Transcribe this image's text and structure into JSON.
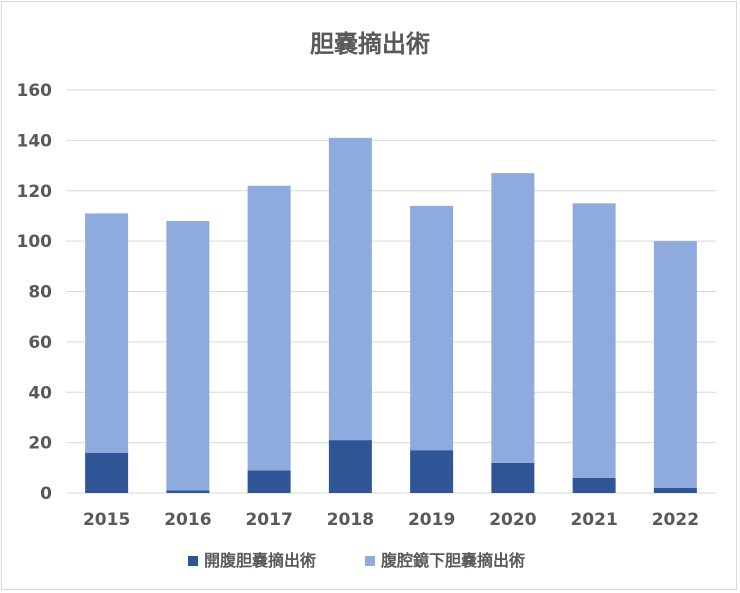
{
  "chart_data": {
    "type": "bar",
    "stacked": true,
    "title": "胆嚢摘出術",
    "categories": [
      "2015",
      "2016",
      "2017",
      "2018",
      "2019",
      "2020",
      "2021",
      "2022"
    ],
    "series": [
      {
        "name": "開腹胆嚢摘出術",
        "color": "#2f5597",
        "values": [
          16,
          1,
          9,
          21,
          17,
          12,
          6,
          2
        ]
      },
      {
        "name": "腹腔鏡下胆嚢摘出術",
        "color": "#8faadc",
        "values": [
          95,
          107,
          113,
          120,
          97,
          115,
          109,
          98
        ]
      }
    ],
    "ylim": [
      0,
      160
    ],
    "yticks": [
      0,
      20,
      40,
      60,
      80,
      100,
      120,
      140,
      160
    ],
    "grid": true,
    "legend": "bottom"
  }
}
